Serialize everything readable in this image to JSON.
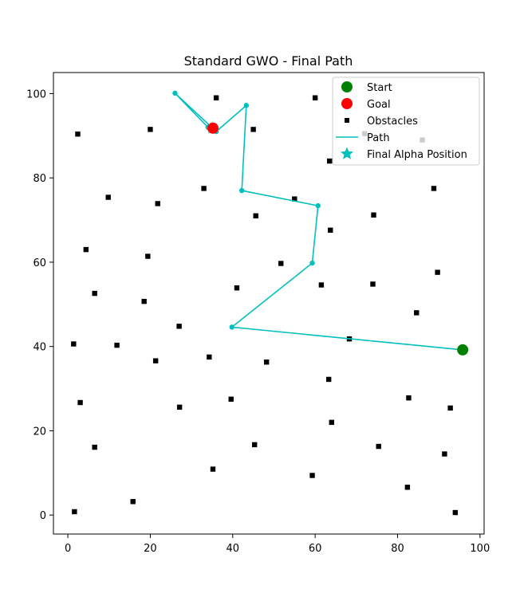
{
  "chart_data": {
    "type": "scatter",
    "title": "Standard GWO - Final Path",
    "xlabel": "",
    "ylabel": "",
    "xlim": [
      -3.5,
      101
    ],
    "ylim": [
      -4.5,
      105
    ],
    "xticks": [
      0,
      20,
      40,
      60,
      80,
      100
    ],
    "yticks": [
      0,
      20,
      40,
      60,
      80,
      100
    ],
    "xtick_labels": [
      "0",
      "20",
      "40",
      "60",
      "80",
      "100"
    ],
    "ytick_labels": [
      "0",
      "20",
      "40",
      "60",
      "80",
      "100"
    ],
    "grid": false,
    "legend_position": "top-right",
    "legend": [
      "Start",
      "Goal",
      "Obstacles",
      "Path",
      "Final Alpha Position"
    ],
    "colors": {
      "start": "#008000",
      "goal": "#ff0000",
      "obstacles": "#000000",
      "path": "#00bfbf",
      "alpha": "#00bfbf"
    },
    "start": {
      "x": 95.8,
      "y": 39.2
    },
    "goal": {
      "x": 35.2,
      "y": 91.8
    },
    "final_alpha_position": {
      "x": 35.0,
      "y": 91.8
    },
    "path": [
      {
        "x": 95.8,
        "y": 39.2
      },
      {
        "x": 39.8,
        "y": 44.6
      },
      {
        "x": 59.3,
        "y": 59.8
      },
      {
        "x": 60.7,
        "y": 73.4
      },
      {
        "x": 42.2,
        "y": 77.0
      },
      {
        "x": 43.3,
        "y": 97.2
      },
      {
        "x": 36.0,
        "y": 91.0
      },
      {
        "x": 26.0,
        "y": 100.1
      },
      {
        "x": 34.0,
        "y": 92.0
      },
      {
        "x": 35.2,
        "y": 91.8
      }
    ],
    "obstacles": [
      {
        "x": 36.0,
        "y": 99.0
      },
      {
        "x": 60.0,
        "y": 99.0
      },
      {
        "x": 2.4,
        "y": 90.4
      },
      {
        "x": 20.0,
        "y": 91.5
      },
      {
        "x": 45.0,
        "y": 91.5
      },
      {
        "x": 72.0,
        "y": 90.5
      },
      {
        "x": 86.0,
        "y": 89.0
      },
      {
        "x": 63.5,
        "y": 84.0
      },
      {
        "x": 9.8,
        "y": 75.4
      },
      {
        "x": 21.8,
        "y": 73.9
      },
      {
        "x": 33.0,
        "y": 77.5
      },
      {
        "x": 55.0,
        "y": 75.0
      },
      {
        "x": 88.8,
        "y": 77.5
      },
      {
        "x": 45.6,
        "y": 71.0
      },
      {
        "x": 74.2,
        "y": 71.2
      },
      {
        "x": 63.7,
        "y": 67.6
      },
      {
        "x": 4.4,
        "y": 63.0
      },
      {
        "x": 19.4,
        "y": 61.4
      },
      {
        "x": 51.7,
        "y": 59.7
      },
      {
        "x": 89.7,
        "y": 57.6
      },
      {
        "x": 41.0,
        "y": 53.9
      },
      {
        "x": 61.5,
        "y": 54.6
      },
      {
        "x": 74.0,
        "y": 54.8
      },
      {
        "x": 6.5,
        "y": 52.6
      },
      {
        "x": 18.5,
        "y": 50.7
      },
      {
        "x": 84.6,
        "y": 48.0
      },
      {
        "x": 27.0,
        "y": 44.8
      },
      {
        "x": 68.3,
        "y": 41.8
      },
      {
        "x": 1.4,
        "y": 40.6
      },
      {
        "x": 11.9,
        "y": 40.3
      },
      {
        "x": 34.3,
        "y": 37.5
      },
      {
        "x": 21.3,
        "y": 36.6
      },
      {
        "x": 48.2,
        "y": 36.3
      },
      {
        "x": 63.3,
        "y": 32.2
      },
      {
        "x": 39.6,
        "y": 27.5
      },
      {
        "x": 82.7,
        "y": 27.8
      },
      {
        "x": 3.0,
        "y": 26.7
      },
      {
        "x": 27.1,
        "y": 25.6
      },
      {
        "x": 92.8,
        "y": 25.4
      },
      {
        "x": 64.0,
        "y": 22.0
      },
      {
        "x": 45.3,
        "y": 16.7
      },
      {
        "x": 75.4,
        "y": 16.3
      },
      {
        "x": 6.5,
        "y": 16.1
      },
      {
        "x": 91.4,
        "y": 14.5
      },
      {
        "x": 35.2,
        "y": 10.9
      },
      {
        "x": 59.3,
        "y": 9.4
      },
      {
        "x": 82.4,
        "y": 6.6
      },
      {
        "x": 15.8,
        "y": 3.2
      },
      {
        "x": 1.6,
        "y": 0.8
      },
      {
        "x": 94.0,
        "y": 0.6
      }
    ]
  }
}
